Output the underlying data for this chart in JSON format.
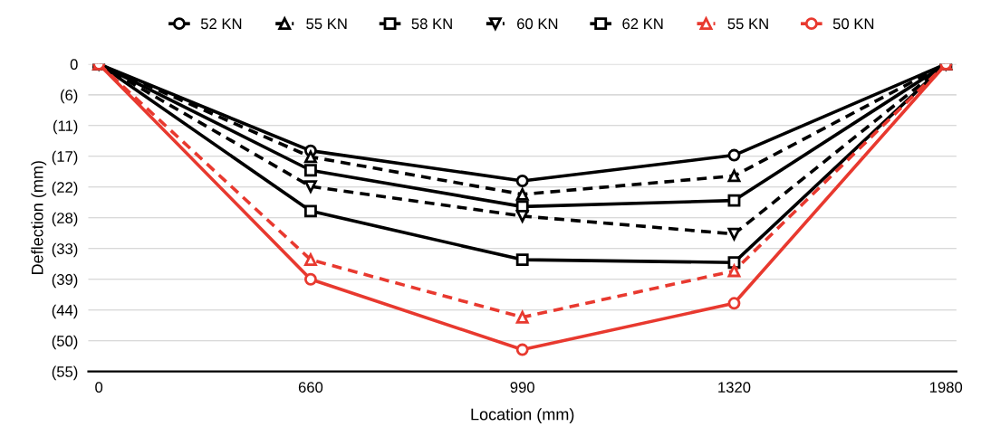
{
  "chart_data": {
    "type": "line",
    "xlabel": "Location (mm)",
    "ylabel": "Deflection (mm)",
    "categories": [
      "0",
      "660",
      "990",
      "1320",
      "1980"
    ],
    "series": [
      {
        "name": "52 KN",
        "color": "#000000",
        "marker": "circle",
        "line_style": "solid",
        "values": [
          0,
          -15.5,
          -20.9,
          -16.3,
          0
        ]
      },
      {
        "name": "55 KN",
        "color": "#000000",
        "marker": "triangle",
        "line_style": "dashed",
        "values": [
          0,
          -16.6,
          -23.3,
          -20.0,
          0
        ]
      },
      {
        "name": "58 KN",
        "color": "#000000",
        "marker": "square",
        "line_style": "solid",
        "values": [
          0,
          -19.0,
          -25.5,
          -24.4,
          0
        ]
      },
      {
        "name": "60 KN",
        "color": "#000000",
        "marker": "triangle_down",
        "line_style": "dashed",
        "values": [
          0,
          -21.9,
          -27.2,
          -30.4,
          0
        ]
      },
      {
        "name": "62 KN",
        "color": "#000000",
        "marker": "square",
        "line_style": "solid",
        "values": [
          0,
          -26.3,
          -35.0,
          -35.5,
          0
        ]
      },
      {
        "name": "55 KN",
        "color": "#e8392f",
        "marker": "triangle",
        "line_style": "dashed",
        "values": [
          0,
          -35.0,
          -45.3,
          -37.0,
          0
        ]
      },
      {
        "name": "50 KN",
        "color": "#e8392f",
        "marker": "circle",
        "line_style": "solid",
        "values": [
          0,
          -38.5,
          -51.1,
          -42.8,
          0
        ]
      }
    ],
    "ylim": [
      -55,
      0
    ],
    "yticks": [
      0,
      {
        "value": -5.5,
        "label": "(6)"
      },
      {
        "value": -11,
        "label": "(11)"
      },
      {
        "value": -16.5,
        "label": "(17)"
      },
      {
        "value": -22,
        "label": "(22)"
      },
      {
        "value": -27.5,
        "label": "(28)"
      },
      {
        "value": -33,
        "label": "(33)"
      },
      {
        "value": -38.5,
        "label": "(39)"
      },
      {
        "value": -44,
        "label": "(44)"
      },
      {
        "value": -49.5,
        "label": "(50)"
      },
      {
        "value": -55,
        "label": "(55)"
      }
    ],
    "grid": "y",
    "legend": "top"
  }
}
